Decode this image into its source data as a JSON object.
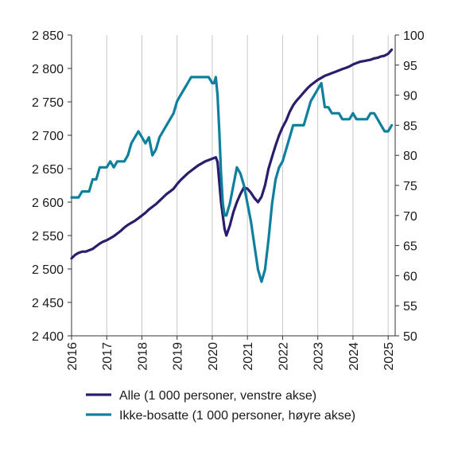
{
  "chart_data": {
    "type": "line",
    "title": "",
    "xlabel": "",
    "x_ticks": [
      "2016",
      "2017",
      "2018",
      "2019",
      "2020",
      "2021",
      "2022",
      "2023",
      "2024",
      "2025"
    ],
    "xlim": [
      2016.0,
      2025.2
    ],
    "left_axis": {
      "ylim": [
        2400,
        2850
      ],
      "ticks": [
        2400,
        2450,
        2500,
        2550,
        2600,
        2650,
        2700,
        2750,
        2800,
        2850
      ],
      "tick_labels": [
        "2 400",
        "2 450",
        "2 500",
        "2 550",
        "2 600",
        "2 650",
        "2 700",
        "2 750",
        "2 800",
        "2 850"
      ]
    },
    "right_axis": {
      "ylim": [
        50,
        100
      ],
      "ticks": [
        50,
        55,
        60,
        65,
        70,
        75,
        80,
        85,
        90,
        95,
        100
      ],
      "tick_labels": [
        "50",
        "55",
        "60",
        "65",
        "70",
        "75",
        "80",
        "85",
        "90",
        "95",
        "100"
      ]
    },
    "grid": "vertical",
    "legend_position": "bottom",
    "series": [
      {
        "name": "Alle (1 000 personer, venstre akse)",
        "axis": "left",
        "color": "#2b1d6b",
        "points": [
          [
            2016.0,
            2516
          ],
          [
            2016.1,
            2521
          ],
          [
            2016.2,
            2524
          ],
          [
            2016.3,
            2526
          ],
          [
            2016.4,
            2526
          ],
          [
            2016.5,
            2528
          ],
          [
            2016.6,
            2530
          ],
          [
            2016.7,
            2534
          ],
          [
            2016.8,
            2538
          ],
          [
            2016.9,
            2541
          ],
          [
            2017.0,
            2543
          ],
          [
            2017.1,
            2546
          ],
          [
            2017.2,
            2549
          ],
          [
            2017.3,
            2553
          ],
          [
            2017.4,
            2557
          ],
          [
            2017.5,
            2562
          ],
          [
            2017.6,
            2566
          ],
          [
            2017.7,
            2569
          ],
          [
            2017.8,
            2572
          ],
          [
            2017.9,
            2576
          ],
          [
            2018.0,
            2580
          ],
          [
            2018.1,
            2584
          ],
          [
            2018.2,
            2589
          ],
          [
            2018.3,
            2593
          ],
          [
            2018.4,
            2597
          ],
          [
            2018.5,
            2602
          ],
          [
            2018.6,
            2607
          ],
          [
            2018.7,
            2612
          ],
          [
            2018.8,
            2616
          ],
          [
            2018.9,
            2620
          ],
          [
            2019.0,
            2627
          ],
          [
            2019.1,
            2633
          ],
          [
            2019.2,
            2638
          ],
          [
            2019.3,
            2643
          ],
          [
            2019.4,
            2647
          ],
          [
            2019.5,
            2651
          ],
          [
            2019.6,
            2655
          ],
          [
            2019.7,
            2658
          ],
          [
            2019.8,
            2661
          ],
          [
            2019.9,
            2663
          ],
          [
            2020.0,
            2665
          ],
          [
            2020.1,
            2667
          ],
          [
            2020.15,
            2660
          ],
          [
            2020.2,
            2630
          ],
          [
            2020.25,
            2600
          ],
          [
            2020.3,
            2580
          ],
          [
            2020.35,
            2560
          ],
          [
            2020.4,
            2550
          ],
          [
            2020.5,
            2565
          ],
          [
            2020.6,
            2585
          ],
          [
            2020.7,
            2600
          ],
          [
            2020.8,
            2612
          ],
          [
            2020.9,
            2622
          ],
          [
            2021.0,
            2620
          ],
          [
            2021.1,
            2614
          ],
          [
            2021.2,
            2606
          ],
          [
            2021.3,
            2600
          ],
          [
            2021.4,
            2608
          ],
          [
            2021.5,
            2625
          ],
          [
            2021.6,
            2650
          ],
          [
            2021.7,
            2668
          ],
          [
            2021.8,
            2685
          ],
          [
            2021.9,
            2700
          ],
          [
            2022.0,
            2712
          ],
          [
            2022.1,
            2722
          ],
          [
            2022.2,
            2735
          ],
          [
            2022.3,
            2745
          ],
          [
            2022.4,
            2752
          ],
          [
            2022.5,
            2758
          ],
          [
            2022.6,
            2764
          ],
          [
            2022.7,
            2770
          ],
          [
            2022.8,
            2775
          ],
          [
            2022.9,
            2779
          ],
          [
            2023.0,
            2783
          ],
          [
            2023.1,
            2786
          ],
          [
            2023.2,
            2789
          ],
          [
            2023.3,
            2791
          ],
          [
            2023.4,
            2793
          ],
          [
            2023.5,
            2795
          ],
          [
            2023.6,
            2797
          ],
          [
            2023.7,
            2799
          ],
          [
            2023.8,
            2801
          ],
          [
            2023.9,
            2803
          ],
          [
            2024.0,
            2806
          ],
          [
            2024.1,
            2808
          ],
          [
            2024.2,
            2810
          ],
          [
            2024.3,
            2811
          ],
          [
            2024.4,
            2812
          ],
          [
            2024.5,
            2813
          ],
          [
            2024.6,
            2815
          ],
          [
            2024.7,
            2816
          ],
          [
            2024.8,
            2818
          ],
          [
            2024.9,
            2819
          ],
          [
            2025.0,
            2822
          ],
          [
            2025.1,
            2828
          ]
        ]
      },
      {
        "name": "Ikke-bosatte (1 000 personer, høyre akse)",
        "axis": "right",
        "color": "#0f7f9e",
        "points": [
          [
            2016.0,
            73
          ],
          [
            2016.1,
            73
          ],
          [
            2016.2,
            73
          ],
          [
            2016.3,
            74
          ],
          [
            2016.4,
            74
          ],
          [
            2016.5,
            74
          ],
          [
            2016.6,
            76
          ],
          [
            2016.7,
            76
          ],
          [
            2016.8,
            78
          ],
          [
            2016.9,
            78
          ],
          [
            2017.0,
            78
          ],
          [
            2017.1,
            79
          ],
          [
            2017.2,
            78
          ],
          [
            2017.3,
            79
          ],
          [
            2017.4,
            79
          ],
          [
            2017.5,
            79
          ],
          [
            2017.6,
            80
          ],
          [
            2017.7,
            82
          ],
          [
            2017.8,
            83
          ],
          [
            2017.9,
            84
          ],
          [
            2018.0,
            83
          ],
          [
            2018.1,
            82
          ],
          [
            2018.2,
            83
          ],
          [
            2018.3,
            80
          ],
          [
            2018.4,
            81
          ],
          [
            2018.5,
            83
          ],
          [
            2018.6,
            84
          ],
          [
            2018.7,
            85
          ],
          [
            2018.8,
            86
          ],
          [
            2018.9,
            87
          ],
          [
            2019.0,
            89
          ],
          [
            2019.1,
            90
          ],
          [
            2019.2,
            91
          ],
          [
            2019.3,
            92
          ],
          [
            2019.4,
            93
          ],
          [
            2019.5,
            93
          ],
          [
            2019.6,
            93
          ],
          [
            2019.7,
            93
          ],
          [
            2019.8,
            93
          ],
          [
            2019.9,
            93
          ],
          [
            2020.0,
            92
          ],
          [
            2020.05,
            92
          ],
          [
            2020.1,
            93
          ],
          [
            2020.15,
            90
          ],
          [
            2020.2,
            84
          ],
          [
            2020.25,
            77
          ],
          [
            2020.3,
            72
          ],
          [
            2020.35,
            70
          ],
          [
            2020.4,
            70
          ],
          [
            2020.5,
            72
          ],
          [
            2020.6,
            75
          ],
          [
            2020.7,
            78
          ],
          [
            2020.8,
            77
          ],
          [
            2020.9,
            75
          ],
          [
            2021.0,
            72
          ],
          [
            2021.1,
            69
          ],
          [
            2021.2,
            65
          ],
          [
            2021.3,
            61
          ],
          [
            2021.4,
            59
          ],
          [
            2021.5,
            61
          ],
          [
            2021.6,
            66
          ],
          [
            2021.7,
            72
          ],
          [
            2021.8,
            76
          ],
          [
            2021.9,
            78
          ],
          [
            2022.0,
            79
          ],
          [
            2022.1,
            81
          ],
          [
            2022.2,
            83
          ],
          [
            2022.3,
            85
          ],
          [
            2022.4,
            85
          ],
          [
            2022.5,
            85
          ],
          [
            2022.6,
            85
          ],
          [
            2022.7,
            87
          ],
          [
            2022.8,
            89
          ],
          [
            2022.9,
            90
          ],
          [
            2023.0,
            91
          ],
          [
            2023.1,
            92
          ],
          [
            2023.2,
            88
          ],
          [
            2023.3,
            88
          ],
          [
            2023.4,
            87
          ],
          [
            2023.5,
            87
          ],
          [
            2023.6,
            87
          ],
          [
            2023.7,
            86
          ],
          [
            2023.8,
            86
          ],
          [
            2023.9,
            86
          ],
          [
            2024.0,
            87
          ],
          [
            2024.1,
            86
          ],
          [
            2024.2,
            86
          ],
          [
            2024.3,
            86
          ],
          [
            2024.4,
            86
          ],
          [
            2024.5,
            87
          ],
          [
            2024.6,
            87
          ],
          [
            2024.7,
            86
          ],
          [
            2024.8,
            85
          ],
          [
            2024.9,
            84
          ],
          [
            2025.0,
            84
          ],
          [
            2025.1,
            85
          ]
        ]
      }
    ]
  }
}
